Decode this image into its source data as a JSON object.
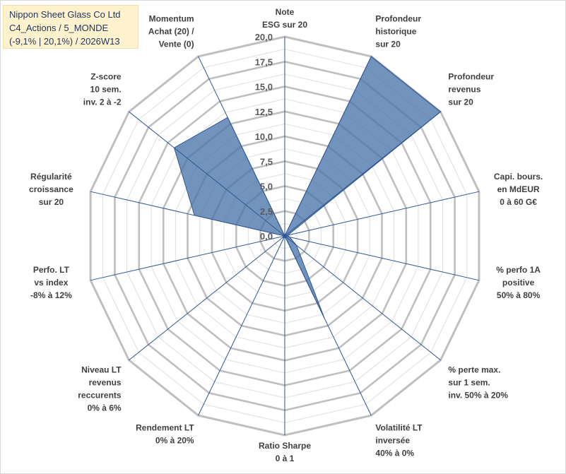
{
  "title": {
    "line1": "Nippon Sheet Glass Co Ltd",
    "line2": "C4_Actions / 5_MONDE",
    "line3": "(-9,1% | 20,1%) / 2026W13"
  },
  "chart_data": {
    "type": "radar",
    "title": "Nippon Sheet Glass Co Ltd",
    "rmin": 0,
    "rmax": 20,
    "ticks": [
      "0,0",
      "2,5",
      "5,0",
      "7,5",
      "10,0",
      "12,5",
      "15,0",
      "17,5",
      "20,0"
    ],
    "tick_values": [
      0,
      2.5,
      5,
      7.5,
      10,
      12.5,
      15,
      17.5,
      20
    ],
    "axes": [
      {
        "label": [
          "Note",
          "ESG sur 20"
        ],
        "value": 0
      },
      {
        "label": [
          "Profondeur",
          "historique",
          "sur 20"
        ],
        "value": 20
      },
      {
        "label": [
          "Profondeur",
          "revenus",
          "sur 20"
        ],
        "value": 20
      },
      {
        "label": [
          "Capi. bours.",
          "en MdEUR",
          "0 à 60 G€"
        ],
        "value": 0.3
      },
      {
        "label": [
          "% perfo 1A",
          "positive",
          "50% à 80%"
        ],
        "value": 0.5
      },
      {
        "label": [
          "% perte max.",
          "sur 1 sem.",
          "inv. 50% à 20%"
        ],
        "value": 1.5
      },
      {
        "label": [
          "Volatilité LT",
          "inversée",
          "40% à 0%"
        ],
        "value": 9.2
      },
      {
        "label": [
          "Ratio Sharpe",
          "0 à 1"
        ],
        "value": 0
      },
      {
        "label": [
          "Rendement LT",
          "0% à 20%"
        ],
        "value": 0.2
      },
      {
        "label": [
          "Niveau LT",
          "revenus",
          "reccurents",
          "0% à 6%"
        ],
        "value": 0.3
      },
      {
        "label": [
          "Perfo. LT",
          "vs index",
          "-8% à 12%"
        ],
        "value": 0
      },
      {
        "label": [
          "Régularité",
          "croissance",
          "sur 20"
        ],
        "value": 9.3
      },
      {
        "label": [
          "Z-score",
          "10 sem.",
          "inv. 2 à -2"
        ],
        "value": 14.2
      },
      {
        "label": [
          "Momentum",
          "Achat (20) /",
          "Vente (0)"
        ],
        "value": 13.2
      }
    ],
    "series_color": "#4a74a8",
    "series_fill_opacity": 0.78,
    "grid_color": "#bfbfbf",
    "spoke_color": "#2f5597"
  }
}
